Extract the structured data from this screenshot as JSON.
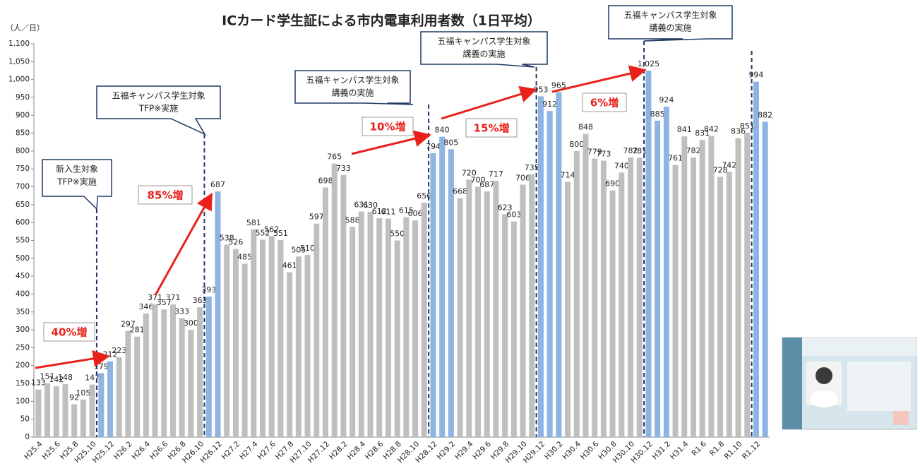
{
  "chart_data": {
    "type": "bar",
    "title": "ICカード学生証による市内電車利用者数（1日平均）",
    "y_label": "（人／日）",
    "categories": [
      "H25.4",
      null,
      "H25.6",
      null,
      "H25.8",
      null,
      "H25.10",
      null,
      "H25.12",
      null,
      "H26.2",
      null,
      "H26.4",
      null,
      "H26.6",
      null,
      "H26.8",
      null,
      "H26.10",
      null,
      "H26.12",
      null,
      "H27.2",
      null,
      "H27.4",
      null,
      "H27.6",
      null,
      "H27.8",
      null,
      "H27.10",
      null,
      "H27.12",
      null,
      "H28.2",
      null,
      "H28.4",
      null,
      "H28.6",
      null,
      "H28.8",
      null,
      "H28.10",
      null,
      "H28.12",
      null,
      "H29.2",
      null,
      "H29.4",
      null,
      "H29.6",
      null,
      "H29.8",
      null,
      "H29.10",
      null,
      "H29.12",
      null,
      "H30.2",
      null,
      "H30.4",
      null,
      "H30.6",
      null,
      "H30.8",
      null,
      "H30.10",
      null,
      "H30.12",
      null,
      "H31.2",
      null,
      "H31.4",
      null,
      "R1.6",
      null,
      "R1.8",
      null,
      "R1.10",
      null,
      "R1.12",
      null
    ],
    "values": [
      133,
      151,
      142,
      148,
      92,
      105,
      147,
      179,
      212,
      223,
      297,
      281,
      346,
      371,
      357,
      371,
      333,
      300,
      363,
      393,
      687,
      538,
      526,
      485,
      581,
      552,
      562,
      551,
      461,
      505,
      510,
      597,
      698,
      765,
      733,
      588,
      631,
      630,
      612,
      611,
      550,
      615,
      606,
      656,
      794,
      840,
      805,
      668,
      720,
      700,
      687,
      717,
      623,
      603,
      706,
      735,
      953,
      912,
      965,
      714,
      800,
      848,
      779,
      773,
      690,
      740,
      782,
      781,
      1025,
      885,
      924,
      761,
      841,
      782,
      831,
      842,
      728,
      742,
      836,
      851,
      994,
      882
    ],
    "value_labels": [
      "133",
      "151",
      "142",
      "148",
      "92",
      "105",
      "147",
      "179",
      "212",
      "223",
      "297",
      "281",
      "346",
      "371",
      "357",
      "371",
      "333",
      "300",
      "363",
      "393",
      "687",
      "538",
      "526",
      "485",
      "581",
      "552",
      "562",
      "551",
      "461",
      "505",
      "510",
      "597",
      "698",
      "765",
      "733",
      "588",
      "631",
      "630",
      "612",
      "611",
      "550",
      "615",
      "606",
      "656",
      "794",
      "840",
      "805",
      "668",
      "720",
      "700",
      "687",
      "717",
      "623",
      "603",
      "706",
      "735",
      "953",
      "912",
      "965",
      "714",
      "800",
      "848",
      "779",
      "773",
      "690",
      "740",
      "782",
      "781",
      "1,025",
      "885",
      "924",
      "761",
      "841",
      "782",
      "831",
      "842",
      "728",
      "742",
      "836",
      "851",
      "994",
      "882"
    ],
    "colors": [
      "#bfbfbf",
      "#bfbfbf",
      "#bfbfbf",
      "#bfbfbf",
      "#bfbfbf",
      "#bfbfbf",
      "#bfbfbf",
      "#8db4e2",
      "#8db4e2",
      "#bfbfbf",
      "#bfbfbf",
      "#bfbfbf",
      "#bfbfbf",
      "#bfbfbf",
      "#bfbfbf",
      "#bfbfbf",
      "#bfbfbf",
      "#bfbfbf",
      "#bfbfbf",
      "#8db4e2",
      "#8db4e2",
      "#bfbfbf",
      "#bfbfbf",
      "#bfbfbf",
      "#bfbfbf",
      "#bfbfbf",
      "#bfbfbf",
      "#bfbfbf",
      "#bfbfbf",
      "#bfbfbf",
      "#bfbfbf",
      "#bfbfbf",
      "#bfbfbf",
      "#bfbfbf",
      "#bfbfbf",
      "#bfbfbf",
      "#bfbfbf",
      "#bfbfbf",
      "#bfbfbf",
      "#bfbfbf",
      "#bfbfbf",
      "#bfbfbf",
      "#bfbfbf",
      "#bfbfbf",
      "#8db4e2",
      "#8db4e2",
      "#8db4e2",
      "#bfbfbf",
      "#bfbfbf",
      "#bfbfbf",
      "#bfbfbf",
      "#bfbfbf",
      "#bfbfbf",
      "#bfbfbf",
      "#bfbfbf",
      "#bfbfbf",
      "#8db4e2",
      "#8db4e2",
      "#8db4e2",
      "#bfbfbf",
      "#bfbfbf",
      "#bfbfbf",
      "#bfbfbf",
      "#bfbfbf",
      "#bfbfbf",
      "#bfbfbf",
      "#bfbfbf",
      "#bfbfbf",
      "#8db4e2",
      "#8db4e2",
      "#8db4e2",
      "#bfbfbf",
      "#bfbfbf",
      "#bfbfbf",
      "#bfbfbf",
      "#bfbfbf",
      "#bfbfbf",
      "#bfbfbf",
      "#bfbfbf",
      "#bfbfbf",
      "#8db4e2",
      "#8db4e2"
    ],
    "ylim": [
      0,
      1100
    ],
    "yticks": [
      0,
      50,
      100,
      150,
      200,
      250,
      300,
      350,
      400,
      450,
      500,
      550,
      600,
      650,
      700,
      750,
      800,
      850,
      900,
      950,
      {
        "value": 1000,
        "label": "1,000"
      },
      {
        "value": 1050,
        "label": "1,050"
      },
      {
        "value": 1100,
        "label": "1,100"
      }
    ],
    "callouts": [
      [
        "新入生対象",
        "TFP※実施"
      ],
      [
        "五福キャンパス学生対象",
        "TFP※実施"
      ],
      [
        "五福キャンパス学生対象",
        "講義の実施"
      ],
      [
        "五福キャンパス学生対象",
        "講義の実施"
      ],
      [
        "五福キャンパス学生対象",
        "講義の実施"
      ]
    ],
    "increase_labels": [
      "40%増",
      "85%増",
      "10%増",
      "15%増",
      "6%増"
    ]
  }
}
